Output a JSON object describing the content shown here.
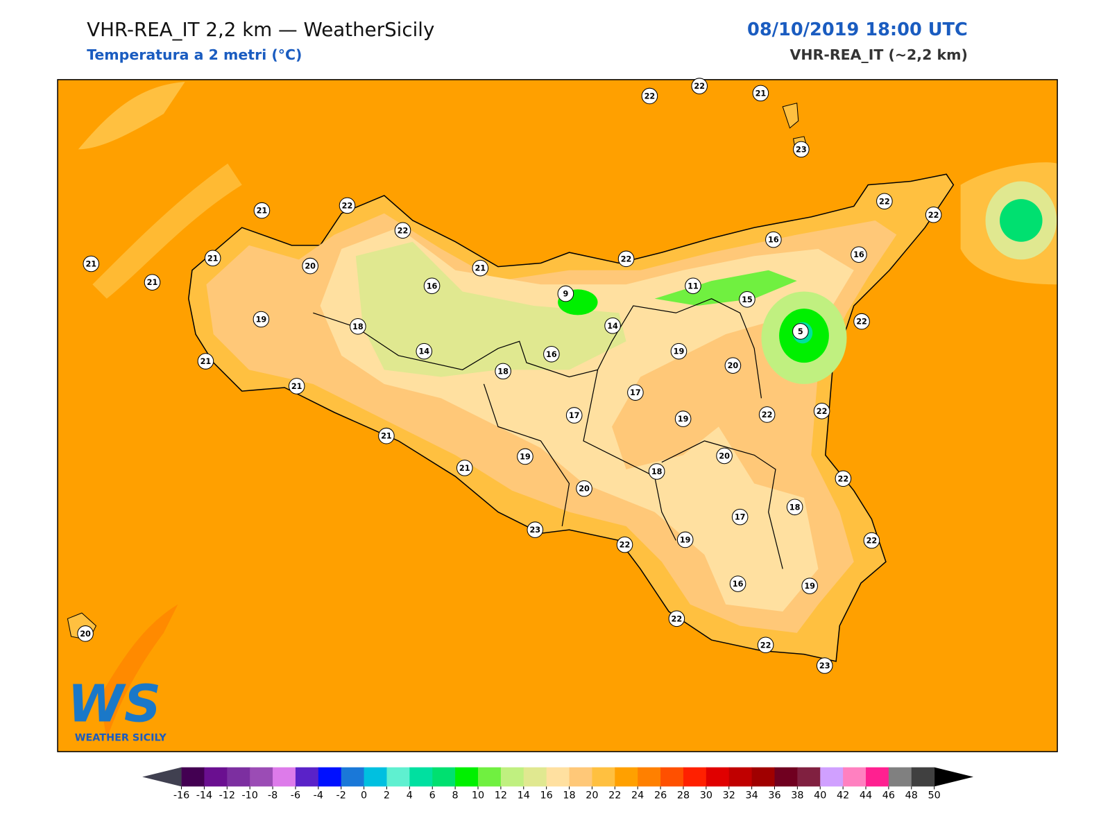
{
  "header": {
    "title": "VHR-REA_IT 2,2 km — WeatherSicily",
    "subtitle": "Temperatura a 2 metri (°C)",
    "datetime": "08/10/2019 18:00 UTC",
    "model": "VHR-REA_IT (~2,2 km)"
  },
  "map": {
    "stations": [
      22,
      22,
      21,
      23,
      21,
      22,
      22,
      22,
      22,
      21,
      21,
      21,
      20,
      21,
      22,
      16,
      16,
      16,
      9,
      11,
      15,
      19,
      18,
      14,
      22,
      5,
      14,
      16,
      19,
      21,
      18,
      20,
      21,
      17,
      17,
      19,
      22,
      22,
      21,
      19,
      20,
      21,
      18,
      22,
      20,
      18,
      17,
      23,
      22,
      19,
      22,
      16,
      19,
      20,
      22,
      22,
      23
    ]
  },
  "colorbar": {
    "ticks": [
      -16,
      -14,
      -12,
      -10,
      -8,
      -6,
      -4,
      -2,
      0,
      2,
      4,
      6,
      8,
      10,
      12,
      14,
      16,
      18,
      20,
      22,
      24,
      26,
      28,
      30,
      32,
      34,
      36,
      38,
      40,
      42,
      44,
      46,
      48,
      50
    ],
    "colors": [
      "#430052",
      "#6a0f90",
      "#7c2fa0",
      "#9b4cb5",
      "#dd7bea",
      "#5a22c8",
      "#0010ff",
      "#1a78d8",
      "#00c0e0",
      "#5ff0d0",
      "#00e0a0",
      "#00e070",
      "#00f000",
      "#70f040",
      "#c0f080",
      "#e0e890",
      "#ffe0a0",
      "#ffc878",
      "#ffc040",
      "#ffa000",
      "#ff8000",
      "#ff5000",
      "#ff2000",
      "#e00000",
      "#c00000",
      "#a00000",
      "#700020",
      "#802040",
      "#d0a0ff",
      "#ff80c0",
      "#ff2090",
      "#808080",
      "#404040"
    ],
    "under_color": "#404050",
    "over_color": "#000000"
  },
  "logo": {
    "mark": "WS",
    "name": "WEATHER SICILY"
  }
}
